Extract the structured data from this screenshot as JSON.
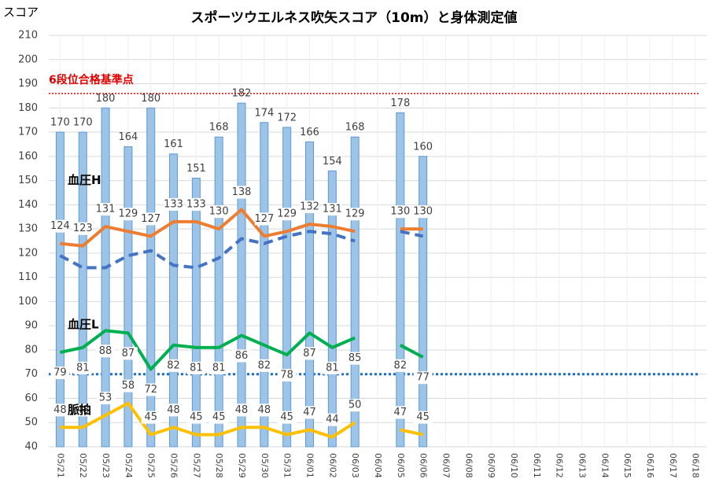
{
  "chart_data": {
    "type": "combo",
    "title": "スポーツウエルネス吹矢スコア（10m）と身体測定値",
    "ylabel": "スコア",
    "categories": [
      "05/21",
      "05/22",
      "05/23",
      "05/24",
      "05/25",
      "05/26",
      "05/27",
      "05/28",
      "05/29",
      "05/30",
      "05/31",
      "06/01",
      "06/02",
      "06/03",
      "06/04",
      "06/05",
      "06/06",
      "06/07",
      "06/08",
      "06/09",
      "06/10",
      "06/11",
      "06/12",
      "06/13",
      "06/14",
      "06/15",
      "06/16",
      "06/17",
      "06/18"
    ],
    "series": [
      {
        "type": "bar",
        "color": "#9dc3e6",
        "values": [
          170,
          170,
          180,
          164,
          180,
          161,
          151,
          168,
          182,
          174,
          172,
          166,
          154,
          168,
          null,
          178,
          160,
          null,
          null,
          null,
          null,
          null,
          null,
          null,
          null,
          null,
          null,
          null,
          null
        ]
      },
      {
        "type": "line",
        "name": "血圧H",
        "color": "#ed7d31",
        "values": [
          124,
          123,
          131,
          129,
          127,
          133,
          133,
          130,
          138,
          127,
          129,
          132,
          131,
          129,
          null,
          130,
          130,
          null,
          null,
          null,
          null,
          null,
          null,
          null,
          null,
          null,
          null,
          null,
          null
        ]
      },
      {
        "type": "line",
        "dashed": true,
        "color": "#4472c4",
        "values": [
          119,
          114,
          114,
          119,
          121,
          115,
          114,
          118,
          126,
          124,
          127,
          129,
          128,
          125,
          null,
          129,
          127,
          null,
          null,
          null,
          null,
          null,
          null,
          null,
          null,
          null,
          null,
          null,
          null
        ]
      },
      {
        "type": "line",
        "name": "血圧L",
        "color": "#00b050",
        "values": [
          79,
          81,
          88,
          87,
          72,
          82,
          81,
          81,
          86,
          82,
          78,
          87,
          81,
          85,
          null,
          82,
          77,
          null,
          null,
          null,
          null,
          null,
          null,
          null,
          null,
          null,
          null,
          null,
          null
        ]
      },
      {
        "type": "line",
        "name": "脈拍",
        "color": "#ffc000",
        "values": [
          48,
          48,
          53,
          58,
          45,
          48,
          45,
          45,
          48,
          48,
          45,
          47,
          44,
          50,
          null,
          47,
          45,
          null,
          null,
          null,
          null,
          null,
          null,
          null,
          null,
          null,
          null,
          null,
          null
        ]
      }
    ],
    "reference_lines": [
      {
        "value": 186,
        "label": "6段位合格基準点",
        "color": "#e00000"
      },
      {
        "value": 70,
        "color": "#1f6fc0"
      }
    ],
    "ylim": [
      40,
      210
    ],
    "yticks": [
      40,
      50,
      60,
      70,
      80,
      90,
      100,
      110,
      120,
      130,
      140,
      150,
      160,
      170,
      180,
      190,
      200,
      210
    ],
    "grid": true
  }
}
